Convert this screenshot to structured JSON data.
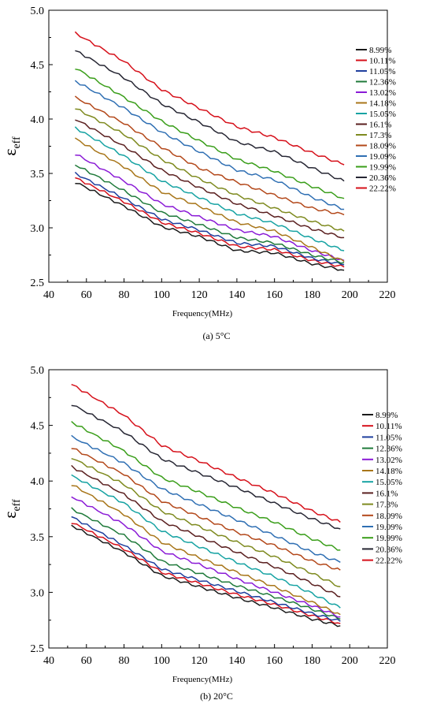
{
  "chart_data": [
    {
      "type": "line",
      "caption": "(a) 5°C",
      "xlabel": "Frequency(MHz)",
      "ylabel": "ε",
      "ylabel_sub": "eff",
      "xlim": [
        40,
        220
      ],
      "ylim": [
        2.5,
        5.0
      ],
      "xticks": [
        "40",
        "60",
        "80",
        "100",
        "120",
        "140",
        "160",
        "180",
        "200",
        "220"
      ],
      "yticks": [
        "2.5",
        "3.0",
        "3.5",
        "4.0",
        "4.5",
        "5.0"
      ],
      "legend_position": "right",
      "x": [
        54,
        80,
        100,
        120,
        140,
        160,
        180,
        197
      ],
      "series": [
        {
          "name": "8.99%",
          "color": "#1a1a1a",
          "values": [
            3.42,
            3.2,
            3.01,
            2.92,
            2.79,
            2.77,
            2.67,
            2.61
          ]
        },
        {
          "name": "10.11%",
          "color": "#d6101a",
          "values": [
            3.46,
            3.24,
            3.05,
            2.95,
            2.83,
            2.8,
            2.7,
            2.64
          ]
        },
        {
          "name": "11.05%",
          "color": "#1f3f9e",
          "values": [
            3.5,
            3.27,
            3.08,
            2.98,
            2.86,
            2.83,
            2.72,
            2.66
          ]
        },
        {
          "name": "12.36%",
          "color": "#1f7a3a",
          "values": [
            3.58,
            3.34,
            3.14,
            3.03,
            2.91,
            2.86,
            2.75,
            2.68
          ]
        },
        {
          "name": "13.02%",
          "color": "#8a1ad6",
          "values": [
            3.68,
            3.43,
            3.22,
            3.1,
            2.98,
            2.92,
            2.79,
            2.7
          ]
        },
        {
          "name": "14.18%",
          "color": "#a8761a",
          "values": [
            3.82,
            3.56,
            3.33,
            3.2,
            3.05,
            2.97,
            2.82,
            2.69
          ]
        },
        {
          "name": "15.05%",
          "color": "#17a3a3",
          "values": [
            3.92,
            3.66,
            3.43,
            3.28,
            3.13,
            3.04,
            2.9,
            2.79
          ]
        },
        {
          "name": "16.1%",
          "color": "#5a1f1f",
          "values": [
            4.0,
            3.75,
            3.53,
            3.37,
            3.22,
            3.11,
            2.99,
            2.91
          ]
        },
        {
          "name": "17.3%",
          "color": "#7e8a1f",
          "values": [
            4.1,
            3.86,
            3.63,
            3.45,
            3.3,
            3.18,
            3.06,
            2.97
          ]
        },
        {
          "name": "18.09%",
          "color": "#b3481a",
          "values": [
            4.2,
            3.96,
            3.74,
            3.55,
            3.42,
            3.3,
            3.18,
            3.12
          ]
        },
        {
          "name": "19.09%",
          "color": "#2f6fb3",
          "values": [
            4.35,
            4.1,
            3.88,
            3.7,
            3.53,
            3.44,
            3.28,
            3.17
          ]
        },
        {
          "name": "19.99%",
          "color": "#3a9e1a",
          "values": [
            4.47,
            4.2,
            3.98,
            3.8,
            3.63,
            3.52,
            3.38,
            3.27
          ]
        },
        {
          "name": "20.36%",
          "color": "#262633",
          "values": [
            4.63,
            4.38,
            4.14,
            3.97,
            3.79,
            3.7,
            3.55,
            3.43
          ]
        },
        {
          "name": "22.22%",
          "color": "#d6101a",
          "values": [
            4.79,
            4.53,
            4.27,
            4.1,
            3.93,
            3.83,
            3.69,
            3.58
          ]
        }
      ]
    },
    {
      "type": "line",
      "caption": "(b) 20°C",
      "xlabel": "Frequency(MHz)",
      "ylabel": "ε",
      "ylabel_sub": "eff",
      "xlim": [
        40,
        220
      ],
      "ylim": [
        2.5,
        5.0
      ],
      "xticks": [
        "40",
        "60",
        "80",
        "100",
        "120",
        "140",
        "160",
        "180",
        "200",
        "220"
      ],
      "yticks": [
        "2.5",
        "3.0",
        "3.5",
        "4.0",
        "4.5",
        "5.0"
      ],
      "legend_position": "right",
      "x": [
        52,
        80,
        100,
        120,
        140,
        160,
        180,
        195
      ],
      "series": [
        {
          "name": "8.99%",
          "color": "#1a1a1a",
          "values": [
            3.6,
            3.36,
            3.15,
            3.05,
            2.95,
            2.86,
            2.76,
            2.7
          ]
        },
        {
          "name": "10.11%",
          "color": "#d6101a",
          "values": [
            3.63,
            3.39,
            3.18,
            3.08,
            2.98,
            2.89,
            2.79,
            2.72
          ]
        },
        {
          "name": "11.05%",
          "color": "#1f3f9e",
          "values": [
            3.68,
            3.42,
            3.21,
            3.11,
            3.01,
            2.91,
            2.81,
            2.74
          ]
        },
        {
          "name": "12.36%",
          "color": "#1f7a3a",
          "values": [
            3.75,
            3.51,
            3.28,
            3.17,
            3.06,
            2.96,
            2.85,
            2.76
          ]
        },
        {
          "name": "13.02%",
          "color": "#8a1ad6",
          "values": [
            3.86,
            3.61,
            3.37,
            3.25,
            3.12,
            3.0,
            2.88,
            2.78
          ]
        },
        {
          "name": "14.18%",
          "color": "#a8761a",
          "values": [
            3.97,
            3.7,
            3.45,
            3.31,
            3.18,
            3.05,
            2.91,
            2.8
          ]
        },
        {
          "name": "15.05%",
          "color": "#17a3a3",
          "values": [
            4.05,
            3.8,
            3.55,
            3.41,
            3.27,
            3.14,
            2.99,
            2.86
          ]
        },
        {
          "name": "16.1%",
          "color": "#5a1f1f",
          "values": [
            4.13,
            3.88,
            3.64,
            3.5,
            3.36,
            3.23,
            3.08,
            2.96
          ]
        },
        {
          "name": "17.3%",
          "color": "#7e8a1f",
          "values": [
            4.21,
            3.97,
            3.73,
            3.59,
            3.45,
            3.32,
            3.17,
            3.05
          ]
        },
        {
          "name": "18.09%",
          "color": "#b3481a",
          "values": [
            4.3,
            4.06,
            3.82,
            3.68,
            3.54,
            3.42,
            3.28,
            3.2
          ]
        },
        {
          "name": "19.09%",
          "color": "#2f6fb3",
          "values": [
            4.4,
            4.16,
            3.93,
            3.79,
            3.65,
            3.51,
            3.36,
            3.27
          ]
        },
        {
          "name": "19.99%",
          "color": "#3a9e1a",
          "values": [
            4.53,
            4.27,
            4.03,
            3.9,
            3.76,
            3.63,
            3.48,
            3.38
          ]
        },
        {
          "name": "20.36%",
          "color": "#262633",
          "values": [
            4.69,
            4.44,
            4.2,
            4.07,
            3.94,
            3.8,
            3.66,
            3.57
          ]
        },
        {
          "name": "22.22%",
          "color": "#d6101a",
          "values": [
            4.87,
            4.59,
            4.32,
            4.18,
            4.03,
            3.89,
            3.73,
            3.63
          ]
        }
      ]
    }
  ]
}
